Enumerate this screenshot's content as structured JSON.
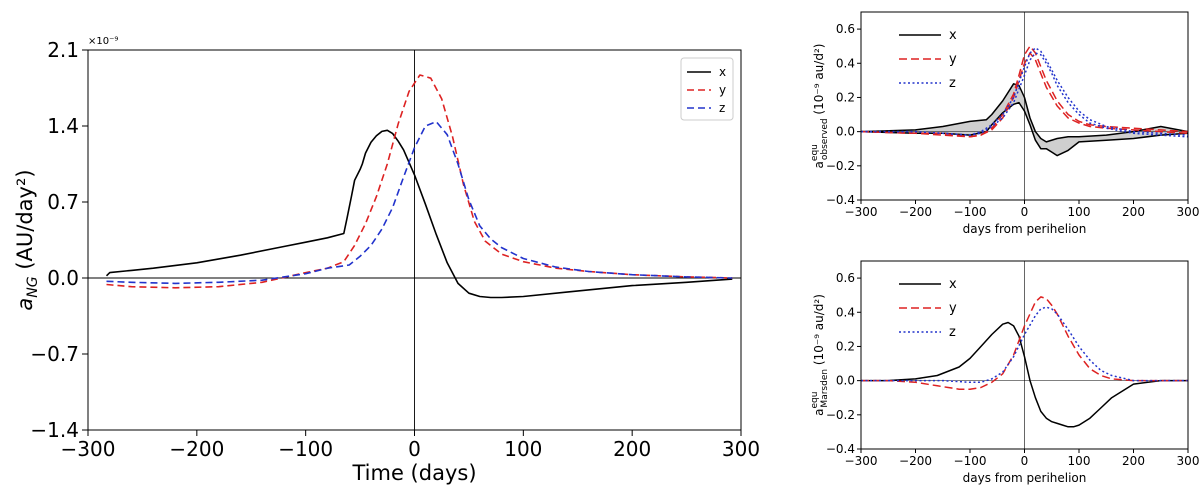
{
  "chart_data": [
    {
      "id": "main",
      "type": "line",
      "xlabel": "Time (days)",
      "ylabel_main": "a",
      "ylabel_sub": "NG",
      "ylabel_units": " (AU/day²)",
      "multiplier": "×10⁻⁹",
      "xlim": [
        -300,
        300
      ],
      "ylim": [
        -1.4,
        2.1
      ],
      "xticks": [
        -300,
        -200,
        -100,
        0,
        100,
        200,
        300
      ],
      "xtick_labels": [
        "−300",
        "−200",
        "−100",
        "0",
        "100",
        "200",
        "300"
      ],
      "yticks": [
        -1.4,
        -0.7,
        0.0,
        0.7,
        1.4,
        2.1
      ],
      "ytick_labels": [
        "−1.4",
        "−0.7",
        "0.0",
        "0.7",
        "1.4",
        "2.1"
      ],
      "legend_position": "top-right",
      "series": [
        {
          "name": "x",
          "color": "#000000",
          "style": "solid",
          "x": [
            -283,
            -280,
            -260,
            -240,
            -200,
            -160,
            -120,
            -100,
            -80,
            -65,
            -62,
            -58,
            -55,
            -50,
            -48,
            -45,
            -40,
            -35,
            -30,
            -25,
            -20,
            -15,
            -10,
            0,
            10,
            20,
            30,
            40,
            50,
            60,
            70,
            80,
            100,
            140,
            200,
            250,
            292
          ],
          "y": [
            0.02,
            0.05,
            0.07,
            0.09,
            0.14,
            0.21,
            0.29,
            0.33,
            0.37,
            0.41,
            0.55,
            0.75,
            0.9,
            1.0,
            1.05,
            1.15,
            1.25,
            1.31,
            1.35,
            1.36,
            1.33,
            1.26,
            1.18,
            0.95,
            0.68,
            0.4,
            0.14,
            -0.05,
            -0.14,
            -0.17,
            -0.18,
            -0.18,
            -0.17,
            -0.13,
            -0.07,
            -0.04,
            -0.01
          ]
        },
        {
          "name": "y",
          "color": "#dd2222",
          "style": "dashed",
          "x": [
            -283,
            -260,
            -220,
            -180,
            -140,
            -100,
            -80,
            -65,
            -55,
            -45,
            -35,
            -25,
            -15,
            -5,
            5,
            15,
            25,
            35,
            45,
            55,
            65,
            80,
            100,
            130,
            160,
            200,
            250,
            292
          ],
          "y": [
            -0.06,
            -0.08,
            -0.09,
            -0.08,
            -0.04,
            0.05,
            0.09,
            0.15,
            0.3,
            0.5,
            0.75,
            1.05,
            1.42,
            1.72,
            1.87,
            1.84,
            1.65,
            1.3,
            0.86,
            0.52,
            0.34,
            0.22,
            0.15,
            0.09,
            0.06,
            0.03,
            0.01,
            0.0
          ]
        },
        {
          "name": "z",
          "color": "#2233cc",
          "style": "dashed",
          "x": [
            -283,
            -260,
            -220,
            -180,
            -140,
            -100,
            -80,
            -60,
            -50,
            -40,
            -30,
            -20,
            -10,
            0,
            10,
            20,
            30,
            40,
            50,
            60,
            70,
            80,
            100,
            130,
            160,
            200,
            250,
            292
          ],
          "y": [
            -0.03,
            -0.04,
            -0.05,
            -0.04,
            -0.02,
            0.04,
            0.09,
            0.12,
            0.2,
            0.3,
            0.45,
            0.65,
            0.93,
            1.2,
            1.4,
            1.44,
            1.32,
            1.05,
            0.72,
            0.48,
            0.36,
            0.28,
            0.18,
            0.1,
            0.06,
            0.03,
            0.01,
            0.0
          ]
        }
      ]
    },
    {
      "id": "observed",
      "type": "line",
      "xlabel": "days from perihelion",
      "ylabel_main": "a",
      "ylabel_sup": "equ",
      "ylabel_sub": "observed",
      "ylabel_units": " (10⁻⁹ au/d²)",
      "xlim": [
        -300,
        300
      ],
      "ylim": [
        -0.4,
        0.7
      ],
      "xticks": [
        -300,
        -200,
        -100,
        0,
        100,
        200,
        300
      ],
      "xtick_labels": [
        "−300",
        "−200",
        "−100",
        "0",
        "100",
        "200",
        "300"
      ],
      "yticks": [
        -0.4,
        -0.2,
        0.0,
        0.2,
        0.4,
        0.6
      ],
      "ytick_labels": [
        "−0.4",
        "−0.2",
        "0.0",
        "0.2",
        "0.4",
        "0.6"
      ],
      "legend_position": "top-left",
      "series": [
        {
          "name": "x upper",
          "legend": "x",
          "color": "#000000",
          "style": "solid",
          "x": [
            -300,
            -200,
            -150,
            -100,
            -70,
            -60,
            -40,
            -20,
            -10,
            0,
            10,
            20,
            30,
            40,
            60,
            80,
            100,
            150,
            200,
            250,
            300
          ],
          "y": [
            0.0,
            0.01,
            0.03,
            0.06,
            0.07,
            0.1,
            0.18,
            0.28,
            0.27,
            0.2,
            0.08,
            0.0,
            -0.04,
            -0.06,
            -0.04,
            -0.03,
            -0.03,
            -0.02,
            0.0,
            0.03,
            0.0
          ]
        },
        {
          "name": "x lower",
          "legend": "",
          "color": "#000000",
          "style": "solid",
          "x": [
            -300,
            -200,
            -150,
            -100,
            -70,
            -60,
            -40,
            -20,
            -10,
            0,
            10,
            20,
            30,
            40,
            50,
            60,
            80,
            100,
            150,
            200,
            250,
            300
          ],
          "y": [
            0.0,
            -0.01,
            -0.01,
            -0.02,
            0.0,
            0.04,
            0.11,
            0.16,
            0.17,
            0.12,
            0.04,
            -0.05,
            -0.1,
            -0.1,
            -0.12,
            -0.14,
            -0.11,
            -0.06,
            -0.05,
            -0.04,
            -0.02,
            -0.01
          ]
        },
        {
          "name": "y",
          "legend": "y",
          "color": "#dd2222",
          "style": "dashed",
          "x": [
            -300,
            -200,
            -150,
            -100,
            -80,
            -60,
            -40,
            -20,
            -10,
            0,
            10,
            20,
            30,
            40,
            60,
            80,
            100,
            120,
            150,
            200,
            250,
            300
          ],
          "y": [
            0.0,
            -0.01,
            -0.01,
            -0.03,
            -0.02,
            0.02,
            0.1,
            0.22,
            0.33,
            0.45,
            0.5,
            0.46,
            0.38,
            0.3,
            0.18,
            0.1,
            0.06,
            0.04,
            0.03,
            0.02,
            0.01,
            0.0
          ]
        },
        {
          "name": "y alt",
          "legend": "",
          "color": "#dd2222",
          "style": "dashed",
          "x": [
            -300,
            -200,
            -150,
            -100,
            -80,
            -60,
            -40,
            -20,
            -10,
            0,
            10,
            20,
            30,
            40,
            60,
            80,
            100,
            120,
            150,
            200,
            250,
            300
          ],
          "y": [
            0.0,
            -0.01,
            -0.02,
            -0.03,
            -0.02,
            0.01,
            0.08,
            0.2,
            0.3,
            0.4,
            0.46,
            0.42,
            0.34,
            0.26,
            0.15,
            0.08,
            0.05,
            0.03,
            0.02,
            0.01,
            0.0,
            -0.01
          ]
        },
        {
          "name": "z",
          "legend": "z",
          "color": "#2233cc",
          "style": "dotted",
          "x": [
            -300,
            -200,
            -150,
            -100,
            -80,
            -60,
            -40,
            -20,
            0,
            10,
            20,
            30,
            40,
            50,
            60,
            80,
            100,
            120,
            150,
            200,
            250,
            300
          ],
          "y": [
            0.0,
            0.0,
            -0.01,
            -0.02,
            0.0,
            0.04,
            0.1,
            0.2,
            0.38,
            0.46,
            0.49,
            0.47,
            0.42,
            0.36,
            0.3,
            0.2,
            0.12,
            0.07,
            0.03,
            0.0,
            -0.01,
            -0.02
          ]
        },
        {
          "name": "z alt",
          "legend": "",
          "color": "#2233cc",
          "style": "dotted",
          "x": [
            -300,
            -200,
            -150,
            -100,
            -80,
            -60,
            -40,
            -20,
            0,
            10,
            20,
            30,
            40,
            50,
            60,
            80,
            100,
            120,
            150,
            200,
            250,
            300
          ],
          "y": [
            0.0,
            0.0,
            -0.01,
            -0.02,
            -0.01,
            0.03,
            0.08,
            0.17,
            0.33,
            0.42,
            0.46,
            0.45,
            0.4,
            0.34,
            0.27,
            0.17,
            0.1,
            0.05,
            0.02,
            -0.01,
            -0.02,
            -0.03
          ]
        }
      ]
    },
    {
      "id": "marsden",
      "type": "line",
      "xlabel": "days from perihelion",
      "ylabel_main": "a",
      "ylabel_sup": "equ",
      "ylabel_sub": "Marsden",
      "ylabel_units": " (10⁻⁹ au/d²)",
      "xlim": [
        -300,
        300
      ],
      "ylim": [
        -0.4,
        0.7
      ],
      "xticks": [
        -300,
        -200,
        -100,
        0,
        100,
        200,
        300
      ],
      "xtick_labels": [
        "−300",
        "−200",
        "−100",
        "0",
        "100",
        "200",
        "300"
      ],
      "yticks": [
        -0.4,
        -0.2,
        0.0,
        0.2,
        0.4,
        0.6
      ],
      "ytick_labels": [
        "−0.4",
        "−0.2",
        "0.0",
        "0.2",
        "0.4",
        "0.6"
      ],
      "legend_position": "top-left",
      "series": [
        {
          "name": "x",
          "legend": "x",
          "color": "#000000",
          "style": "solid",
          "x": [
            -300,
            -250,
            -200,
            -160,
            -120,
            -100,
            -80,
            -60,
            -40,
            -30,
            -20,
            -10,
            0,
            10,
            20,
            30,
            40,
            50,
            60,
            70,
            80,
            90,
            100,
            120,
            140,
            160,
            200,
            250,
            300
          ],
          "y": [
            0.0,
            0.0,
            0.01,
            0.03,
            0.08,
            0.13,
            0.2,
            0.27,
            0.33,
            0.34,
            0.32,
            0.26,
            0.14,
            0.0,
            -0.1,
            -0.18,
            -0.22,
            -0.24,
            -0.25,
            -0.26,
            -0.27,
            -0.27,
            -0.26,
            -0.22,
            -0.16,
            -0.1,
            -0.02,
            0.0,
            0.0
          ]
        },
        {
          "name": "y",
          "legend": "y",
          "color": "#dd2222",
          "style": "dashed",
          "x": [
            -300,
            -250,
            -200,
            -160,
            -140,
            -120,
            -100,
            -80,
            -60,
            -40,
            -20,
            0,
            20,
            30,
            40,
            50,
            60,
            80,
            100,
            120,
            140,
            160,
            200,
            250,
            300
          ],
          "y": [
            0.0,
            0.0,
            -0.01,
            -0.03,
            -0.04,
            -0.05,
            -0.05,
            -0.04,
            -0.01,
            0.04,
            0.15,
            0.32,
            0.46,
            0.49,
            0.48,
            0.44,
            0.39,
            0.26,
            0.15,
            0.07,
            0.03,
            0.01,
            0.0,
            0.0,
            0.0
          ]
        },
        {
          "name": "z",
          "legend": "z",
          "color": "#2233cc",
          "style": "dotted",
          "x": [
            -300,
            -250,
            -200,
            -150,
            -100,
            -80,
            -60,
            -40,
            -20,
            0,
            20,
            30,
            40,
            50,
            60,
            80,
            100,
            120,
            140,
            160,
            200,
            250,
            300
          ],
          "y": [
            0.0,
            0.0,
            0.0,
            0.0,
            -0.01,
            -0.01,
            0.01,
            0.05,
            0.14,
            0.27,
            0.38,
            0.42,
            0.43,
            0.42,
            0.39,
            0.3,
            0.2,
            0.12,
            0.06,
            0.03,
            0.0,
            0.0,
            0.0
          ]
        }
      ]
    }
  ]
}
